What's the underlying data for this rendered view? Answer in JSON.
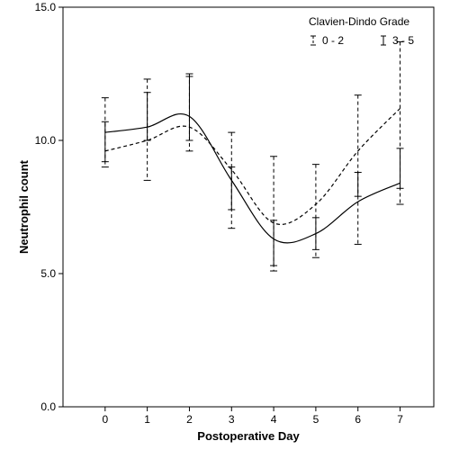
{
  "chart_data": {
    "type": "line",
    "xlabel": "Postoperative Day",
    "ylabel": "Neutrophil count",
    "x": [
      0,
      1,
      2,
      3,
      4,
      5,
      6,
      7
    ],
    "xlim": [
      -1.0,
      7.8
    ],
    "ylim": [
      0,
      15
    ],
    "x_tick_labels": [
      "0",
      "1",
      "2",
      "3",
      "4",
      "5",
      "6",
      "7"
    ],
    "y_tick_labels": [
      "0.0",
      "5.0",
      "10.0",
      "15.0"
    ],
    "y_ticks": [
      0,
      5,
      10,
      15
    ],
    "grid": false,
    "legend": {
      "title": "Clavien-Dindo Grade",
      "placement": "top-right"
    },
    "series": [
      {
        "name": "0 - 2",
        "style": "dashed",
        "values": [
          9.6,
          10.0,
          10.5,
          8.9,
          6.9,
          7.6,
          9.6,
          11.2
        ],
        "ci_low": [
          9.0,
          8.5,
          9.6,
          6.7,
          5.1,
          5.6,
          6.1,
          7.6
        ],
        "ci_high": [
          11.6,
          12.3,
          12.5,
          10.3,
          9.4,
          9.1,
          11.7,
          13.7
        ]
      },
      {
        "name": "3 - 5",
        "style": "solid",
        "values": [
          10.3,
          10.5,
          10.9,
          8.5,
          6.3,
          6.5,
          7.7,
          8.4
        ],
        "ci_low": [
          9.2,
          10.0,
          10.0,
          7.4,
          5.3,
          5.9,
          7.9,
          8.2
        ],
        "ci_high": [
          10.7,
          11.8,
          12.4,
          9.0,
          7.0,
          7.1,
          8.8,
          9.7
        ]
      }
    ],
    "colors": {
      "line": "#000000",
      "background": "#ffffff"
    }
  }
}
